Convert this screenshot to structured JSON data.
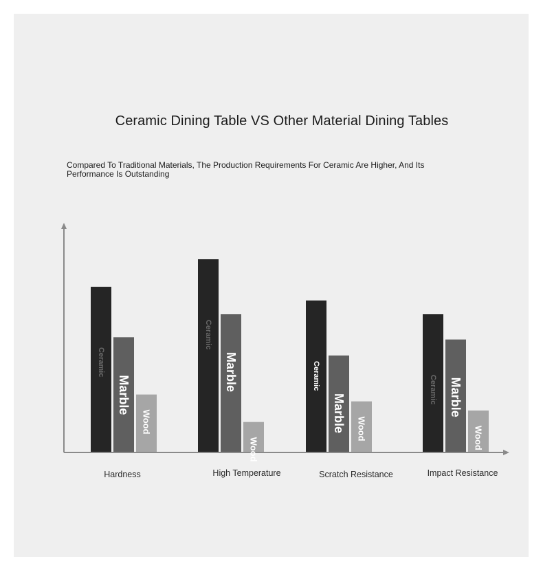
{
  "chart_data": {
    "type": "bar",
    "title": "Ceramic Dining Table VS Other Material Dining Tables",
    "subtitle": "Compared To Traditional Materials, The Production Requirements For Ceramic Are Higher, And Its Performance Is Outstanding",
    "categories": [
      "Hardness",
      "High Temperature",
      "Scratch Resistance",
      "Impact Resistance"
    ],
    "series": [
      {
        "name": "Ceramic",
        "values": [
          72,
          84,
          66,
          60
        ],
        "color": "#252525"
      },
      {
        "name": "Marble",
        "values": [
          50,
          60,
          42,
          49
        ],
        "color": "#5f5f5f"
      },
      {
        "name": "Wood",
        "values": [
          25,
          13,
          22,
          18
        ],
        "color": "#a6a6a6"
      }
    ],
    "ylim": [
      0,
      100
    ],
    "grid": false,
    "legend": "none"
  }
}
